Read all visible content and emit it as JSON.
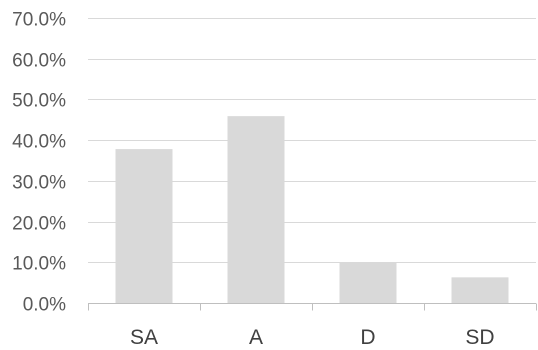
{
  "chart_data": {
    "type": "bar",
    "categories": [
      "SA",
      "A",
      "D",
      "SD"
    ],
    "values": [
      37.8,
      45.9,
      10.0,
      6.3
    ],
    "ylim": [
      0,
      70
    ],
    "yticks": [
      0,
      10,
      20,
      30,
      40,
      50,
      60,
      70
    ],
    "ytick_labels": [
      "0.0%",
      "10.0%",
      "20.0%",
      "30.0%",
      "40.0%",
      "50.0%",
      "60.0%",
      "70.0%"
    ],
    "grid": true,
    "legend": "none",
    "colors": {
      "bar": "#d9d9d9",
      "grid": "#d9d9d9",
      "axis": "#bfbfbf"
    }
  }
}
